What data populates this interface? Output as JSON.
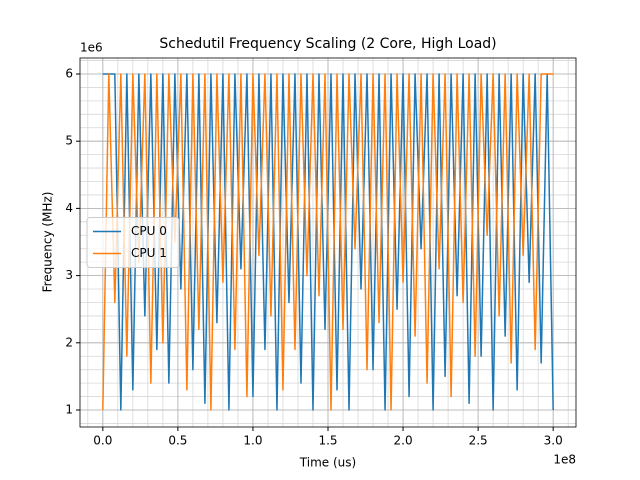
{
  "chart_data": {
    "type": "line",
    "title": "Schedutil Frequency Scaling (2 Core, High Load)",
    "x_label": "Time (us)",
    "y_label": "Frequency (MHz)",
    "x_offset_label": "1e8",
    "y_offset_label": "1e6",
    "x": [
      0,
      0.04,
      0.08,
      0.12,
      0.16,
      0.2,
      0.24,
      0.28,
      0.32,
      0.36,
      0.4,
      0.44,
      0.48,
      0.52,
      0.56,
      0.6,
      0.64,
      0.68,
      0.72,
      0.76,
      0.8,
      0.84,
      0.88,
      0.92,
      0.96,
      1,
      1.04,
      1.08,
      1.12,
      1.16,
      1.2,
      1.24,
      1.28,
      1.32,
      1.36,
      1.4,
      1.44,
      1.48,
      1.52,
      1.56,
      1.6,
      1.64,
      1.68,
      1.72,
      1.76,
      1.8,
      1.84,
      1.88,
      1.92,
      1.96,
      2,
      2.04,
      2.08,
      2.12,
      2.16,
      2.2,
      2.24,
      2.28,
      2.32,
      2.36,
      2.4,
      2.44,
      2.48,
      2.52,
      2.56,
      2.6,
      2.64,
      2.68,
      2.72,
      2.76,
      2.8,
      2.84,
      2.88,
      2.92,
      2.96,
      3
    ],
    "series": [
      {
        "name": "CPU 0",
        "color": "#1f77b4",
        "values": [
          6,
          6,
          6,
          1.0,
          6,
          1.3,
          6,
          2.4,
          6,
          1.9,
          6,
          1.4,
          6,
          2.8,
          6,
          1.6,
          6,
          1.1,
          6,
          2.3,
          6,
          1.0,
          6,
          3.1,
          6,
          1.2,
          6,
          1.9,
          6,
          1.0,
          6,
          2.6,
          6,
          1.4,
          6,
          1.0,
          6,
          2.2,
          6,
          1.3,
          6,
          1.0,
          6,
          2.8,
          6,
          1.6,
          6,
          1.0,
          6,
          2.5,
          6,
          1.2,
          6,
          3.4,
          6,
          1.0,
          6,
          1.5,
          6,
          2.7,
          6,
          1.1,
          6,
          1.8,
          6,
          1.0,
          6,
          2.1,
          6,
          1.3,
          6,
          2.9,
          6,
          1.7,
          6,
          1.0
        ]
      },
      {
        "name": "CPU 1",
        "color": "#ff7f0e",
        "values": [
          1.0,
          6,
          2.6,
          6,
          1.8,
          6,
          3.2,
          6,
          1.4,
          6,
          2.0,
          6,
          3.5,
          6,
          1.3,
          6,
          2.2,
          6,
          1.0,
          6,
          2.9,
          6,
          1.9,
          6,
          1.2,
          6,
          3.3,
          6,
          2.4,
          6,
          1.3,
          6,
          1.9,
          6,
          3.0,
          6,
          2.7,
          6,
          1.0,
          6,
          2.2,
          6,
          3.4,
          6,
          1.6,
          6,
          2.3,
          6,
          1.0,
          6,
          2.9,
          6,
          2.1,
          6,
          1.4,
          6,
          3.1,
          6,
          1.2,
          6,
          2.6,
          6,
          1.8,
          6,
          3.6,
          6,
          2.4,
          6,
          1.7,
          6,
          3.3,
          6,
          1.9,
          6,
          6,
          6
        ]
      }
    ],
    "xlim": [
      -0.152,
      3.152
    ],
    "ylim": [
      0.747,
      6.238
    ],
    "xticks": [
      {
        "value": 0,
        "label": "0.0"
      },
      0.5,
      {
        "value": 1,
        "label": "1.0"
      },
      1.5,
      {
        "value": 2,
        "label": "2.0"
      },
      2.5,
      {
        "value": 3,
        "label": "3.0"
      }
    ],
    "yticks": [
      1,
      2,
      3,
      4,
      5,
      6
    ],
    "grid": true,
    "minor_grid": true,
    "legend": "center left"
  }
}
